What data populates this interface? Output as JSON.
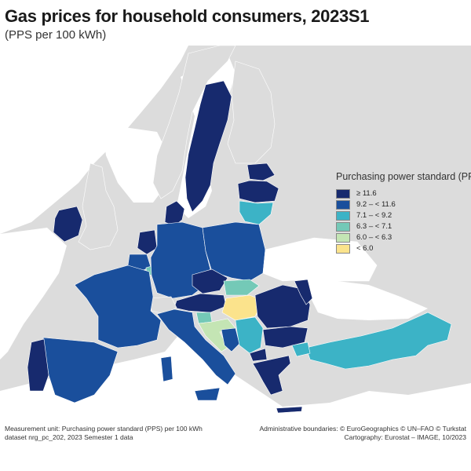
{
  "header": {
    "title": "Gas prices for household consumers, 2023S1",
    "subtitle": "(PPS per 100 kWh)"
  },
  "legend": {
    "title": "Purchasing power standard (PPS)",
    "classes": [
      {
        "label": "≥ 11.6",
        "color": "#172a6e"
      },
      {
        "label": "9.2 – < 11.6",
        "color": "#1a4f9c"
      },
      {
        "label": "7.1 – < 9.2",
        "color": "#3cb3c6"
      },
      {
        "label": "6.3 – < 7.1",
        "color": "#74c9b7"
      },
      {
        "label": "6.0 – < 6.3",
        "color": "#c4e5b4"
      },
      {
        "label": "< 6.0",
        "color": "#fbe38c"
      }
    ]
  },
  "footer": {
    "measurement_unit": "Measurement unit: Purchasing power standard (PPS) per 100 kWh",
    "dataset": "dataset nrg_pc_202, 2023 Semester 1 data",
    "boundaries": "Administrative boundaries: © EuroGeographics © UN–FAO © Turkstat",
    "cartography": "Cartography: Eurostat – IMAGE, 10/2023"
  },
  "map": {
    "sea_color": "#ffffff",
    "land_color": "#dcdcdc",
    "nodata_color": "#ffffff",
    "countries": [
      {
        "id": "se",
        "name": "Sweden",
        "class": 0
      },
      {
        "id": "fi",
        "name": "Finland",
        "class": -1
      },
      {
        "id": "no",
        "name": "Norway",
        "class": -1
      },
      {
        "id": "ee",
        "name": "Estonia",
        "class": 0
      },
      {
        "id": "lv",
        "name": "Latvia",
        "class": 0
      },
      {
        "id": "lt",
        "name": "Lithuania",
        "class": 2
      },
      {
        "id": "dk",
        "name": "Denmark",
        "class": 0
      },
      {
        "id": "ie",
        "name": "Ireland",
        "class": 0
      },
      {
        "id": "nl",
        "name": "Netherlands",
        "class": 0
      },
      {
        "id": "be",
        "name": "Belgium",
        "class": 1
      },
      {
        "id": "lu",
        "name": "Luxembourg",
        "class": 3
      },
      {
        "id": "de",
        "name": "Germany",
        "class": 1
      },
      {
        "id": "pl",
        "name": "Poland",
        "class": 1
      },
      {
        "id": "cz",
        "name": "Czechia",
        "class": 0
      },
      {
        "id": "sk",
        "name": "Slovakia",
        "class": 3
      },
      {
        "id": "at",
        "name": "Austria",
        "class": 0
      },
      {
        "id": "ch",
        "name": "Switzerland",
        "class": -2
      },
      {
        "id": "fr",
        "name": "France",
        "class": 1
      },
      {
        "id": "es",
        "name": "Spain",
        "class": 1
      },
      {
        "id": "pt",
        "name": "Portugal",
        "class": 0
      },
      {
        "id": "it",
        "name": "Italy",
        "class": 1
      },
      {
        "id": "si",
        "name": "Slovenia",
        "class": 3
      },
      {
        "id": "hr",
        "name": "Croatia",
        "class": 4
      },
      {
        "id": "hu",
        "name": "Hungary",
        "class": 5
      },
      {
        "id": "rs",
        "name": "Serbia",
        "class": 2
      },
      {
        "id": "ba",
        "name": "Bosnia and Herzegovina",
        "class": 1
      },
      {
        "id": "ro",
        "name": "Romania",
        "class": 0
      },
      {
        "id": "md",
        "name": "Moldova",
        "class": 0
      },
      {
        "id": "bg",
        "name": "Bulgaria",
        "class": 0
      },
      {
        "id": "mk",
        "name": "North Macedonia",
        "class": 0
      },
      {
        "id": "gr",
        "name": "Greece",
        "class": 0
      },
      {
        "id": "tr",
        "name": "Türkiye",
        "class": 2
      },
      {
        "id": "ua",
        "name": "Ukraine",
        "class": -1
      }
    ]
  }
}
